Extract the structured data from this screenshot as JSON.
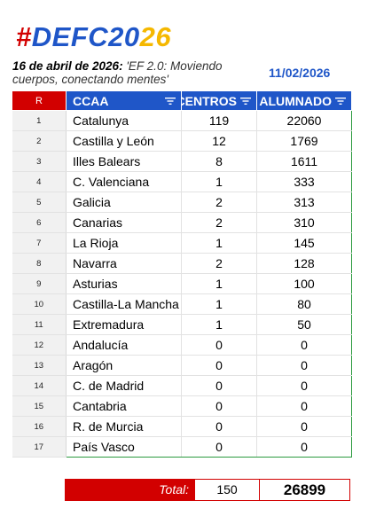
{
  "title": {
    "hash": "#",
    "part1": "DEFC20",
    "part2": "26"
  },
  "event": {
    "date": "16 de abril de 2026:",
    "description": "'EF 2.0: Moviendo cuerpos, conectando mentes'"
  },
  "update_date": "11/02/2026",
  "colors": {
    "red": "#d20000",
    "blue": "#1f56c8",
    "yellow": "#f5b800",
    "green": "#2b9a3e"
  },
  "table": {
    "headers": {
      "rank": "R",
      "ccaa": "CCAA",
      "centros": "CENTROS",
      "alumnado": "ALUMNADO"
    },
    "header_icons": [
      "filter-icon",
      "filter-icon",
      "filter-icon"
    ],
    "rows": [
      {
        "r": "1",
        "ccaa": "Catalunya",
        "centros": "119",
        "alumnado": "22060"
      },
      {
        "r": "2",
        "ccaa": "Castilla y León",
        "centros": "12",
        "alumnado": "1769"
      },
      {
        "r": "3",
        "ccaa": "Illes Balears",
        "centros": "8",
        "alumnado": "1611"
      },
      {
        "r": "4",
        "ccaa": "C. Valenciana",
        "centros": "1",
        "alumnado": "333"
      },
      {
        "r": "5",
        "ccaa": "Galicia",
        "centros": "2",
        "alumnado": "313"
      },
      {
        "r": "6",
        "ccaa": "Canarias",
        "centros": "2",
        "alumnado": "310"
      },
      {
        "r": "7",
        "ccaa": "La Rioja",
        "centros": "1",
        "alumnado": "145"
      },
      {
        "r": "8",
        "ccaa": "Navarra",
        "centros": "2",
        "alumnado": "128"
      },
      {
        "r": "9",
        "ccaa": "Asturias",
        "centros": "1",
        "alumnado": "100"
      },
      {
        "r": "10",
        "ccaa": "Castilla-La Mancha",
        "centros": "1",
        "alumnado": "80"
      },
      {
        "r": "11",
        "ccaa": "Extremadura",
        "centros": "1",
        "alumnado": "50"
      },
      {
        "r": "12",
        "ccaa": "Andalucía",
        "centros": "0",
        "alumnado": "0"
      },
      {
        "r": "13",
        "ccaa": "Aragón",
        "centros": "0",
        "alumnado": "0"
      },
      {
        "r": "14",
        "ccaa": "C. de Madrid",
        "centros": "0",
        "alumnado": "0"
      },
      {
        "r": "15",
        "ccaa": "Cantabria",
        "centros": "0",
        "alumnado": "0"
      },
      {
        "r": "16",
        "ccaa": "R. de Murcia",
        "centros": "0",
        "alumnado": "0"
      },
      {
        "r": "17",
        "ccaa": "País Vasco",
        "centros": "0",
        "alumnado": "0"
      }
    ]
  },
  "totals": {
    "label": "Total:",
    "centros": "150",
    "alumnado": "26899"
  }
}
